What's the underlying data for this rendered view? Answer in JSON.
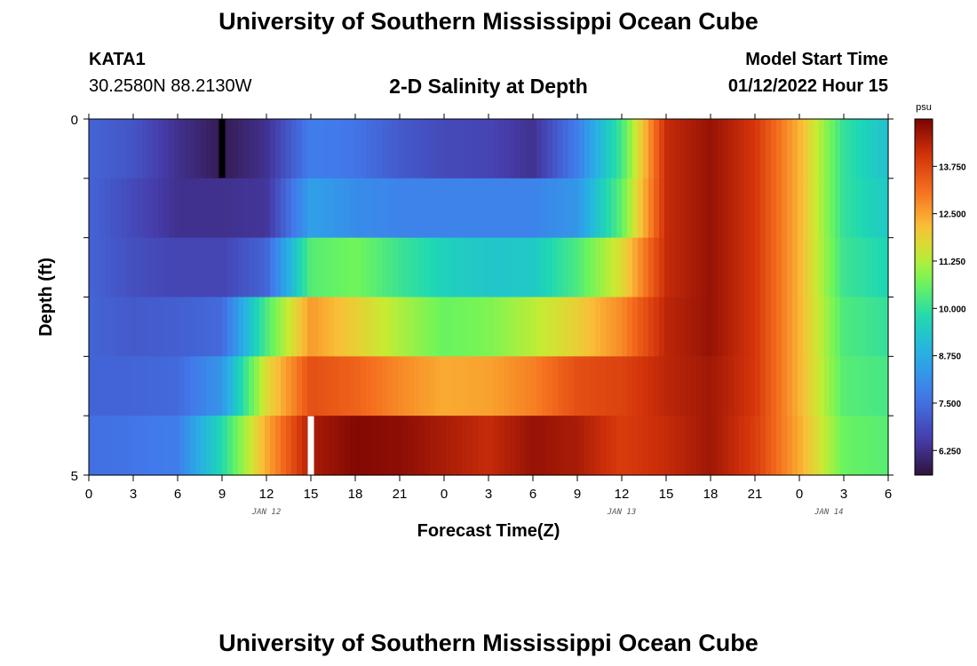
{
  "header": {
    "title": "University of Southern Mississippi Ocean Cube",
    "station_id": "KATA1",
    "station_coords": "30.2580N  88.2130W",
    "plot_title": "2-D Salinity at Depth",
    "start_label": "Model Start Time",
    "start_value": "01/12/2022 Hour 15"
  },
  "footer": {
    "title": "University of Southern Mississippi Ocean Cube"
  },
  "chart_data": {
    "type": "heatmap",
    "title": "2-D Salinity at Depth",
    "xlabel": "Forecast Time(Z)",
    "ylabel": "Depth (ft)",
    "x_tick_labels": [
      "0",
      "3",
      "6",
      "9",
      "12",
      "15",
      "18",
      "21",
      "0",
      "3",
      "6",
      "9",
      "12",
      "15",
      "18",
      "21",
      "0",
      "3",
      "6"
    ],
    "date_labels": [
      {
        "hour_index": 12,
        "text": "JAN 12"
      },
      {
        "hour_index": 36,
        "text": "JAN 13"
      },
      {
        "hour_index": 60,
        "text": "JAN 14"
      }
    ],
    "y_tick_labels": [
      "0",
      "5"
    ],
    "ylim": [
      0,
      5
    ],
    "x_hours": [
      0,
      54
    ],
    "colorbar": {
      "unit": "psu",
      "min": 5.6,
      "max": 15.0,
      "tick_values": [
        6.25,
        7.5,
        8.75,
        10.0,
        11.25,
        12.5,
        13.75
      ],
      "tick_labels": [
        "6.250",
        "7.500",
        "8.750",
        "10.000",
        "11.250",
        "12.500",
        "13.750"
      ]
    },
    "column_hours": [
      0,
      3,
      6,
      9,
      12,
      15,
      18,
      21,
      24,
      27,
      30,
      33,
      36,
      39,
      42,
      45,
      48,
      51,
      54
    ],
    "values": [
      [
        7.3,
        7.0,
        6.3,
        5.8,
        6.3,
        7.8,
        7.6,
        7.1,
        6.8,
        6.7,
        6.3,
        7.8,
        10.2,
        14.2,
        14.7,
        14.0,
        12.3,
        10.0,
        9.2
      ],
      [
        7.3,
        6.8,
        6.3,
        6.3,
        6.4,
        8.5,
        8.1,
        7.9,
        7.9,
        7.9,
        7.9,
        8.3,
        10.5,
        14.2,
        14.7,
        14.0,
        12.3,
        10.0,
        9.4
      ],
      [
        7.3,
        6.9,
        6.7,
        6.7,
        7.3,
        10.4,
        10.7,
        10.1,
        9.6,
        9.3,
        9.4,
        10.3,
        11.7,
        14.2,
        14.7,
        14.0,
        12.3,
        10.1,
        9.7
      ],
      [
        7.3,
        7.1,
        7.2,
        7.4,
        10.3,
        12.6,
        11.9,
        11.2,
        10.6,
        10.8,
        11.3,
        11.9,
        12.8,
        14.3,
        14.7,
        14.0,
        12.3,
        10.3,
        10.0
      ],
      [
        7.3,
        7.3,
        7.4,
        8.3,
        11.7,
        13.6,
        13.3,
        12.8,
        12.4,
        12.5,
        12.9,
        13.6,
        13.8,
        14.3,
        14.6,
        14.0,
        12.3,
        10.4,
        10.2
      ],
      [
        7.5,
        7.6,
        7.8,
        9.8,
        12.4,
        14.5,
        14.9,
        14.8,
        14.5,
        14.2,
        14.7,
        14.5,
        13.9,
        14.2,
        14.6,
        13.9,
        12.4,
        10.6,
        10.4
      ]
    ],
    "markers": [
      {
        "hour": 9,
        "row": 0,
        "color": "#000000"
      },
      {
        "hour": 15,
        "row": 5,
        "color": "#ffffff"
      }
    ]
  }
}
